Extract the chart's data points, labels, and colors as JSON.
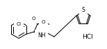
{
  "bg_color": "#ffffff",
  "line_color": "#000000",
  "text_color": "#000000",
  "figsize": [
    1.54,
    0.71
  ],
  "dpi": 100,
  "hcl_text": "HCl",
  "nh_text": "NH",
  "cl_text": "Cl",
  "o1_text": "O",
  "o2_text": "O",
  "s_text": "S",
  "lw": 0.75,
  "fs": 5.2
}
